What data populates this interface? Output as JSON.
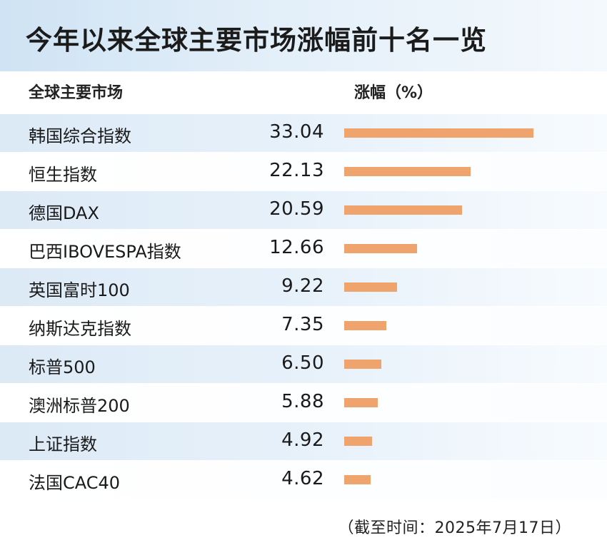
{
  "title": "今年以来全球主要市场涨幅前十名一览",
  "header": {
    "market": "全球主要市场",
    "change": "涨幅（%）"
  },
  "note": "（截至时间：2025年7月17日）",
  "colors": {
    "bar": "#eea46c",
    "title_band": "#cfe3f4"
  },
  "chart_data": {
    "type": "bar",
    "orientation": "horizontal",
    "title": "今年以来全球主要市场涨幅前十名一览",
    "xlabel": "涨幅（%）",
    "ylabel": "全球主要市场",
    "categories": [
      "韩国综合指数",
      "恒生指数",
      "德国DAX",
      "巴西IBOVESPA指数",
      "英国富时100",
      "纳斯达克指数",
      "标普500",
      "澳洲标普200",
      "上证指数",
      "法国CAC40"
    ],
    "values": [
      33.04,
      22.13,
      20.59,
      12.66,
      9.22,
      7.35,
      6.5,
      5.88,
      4.92,
      4.62
    ],
    "value_labels": [
      "33.04",
      "22.13",
      "20.59",
      "12.66",
      "9.22",
      "7.35",
      "6.50",
      "5.88",
      "4.92",
      "4.62"
    ],
    "xlim": [
      0,
      33.04
    ],
    "grid": false,
    "legend": "none"
  }
}
